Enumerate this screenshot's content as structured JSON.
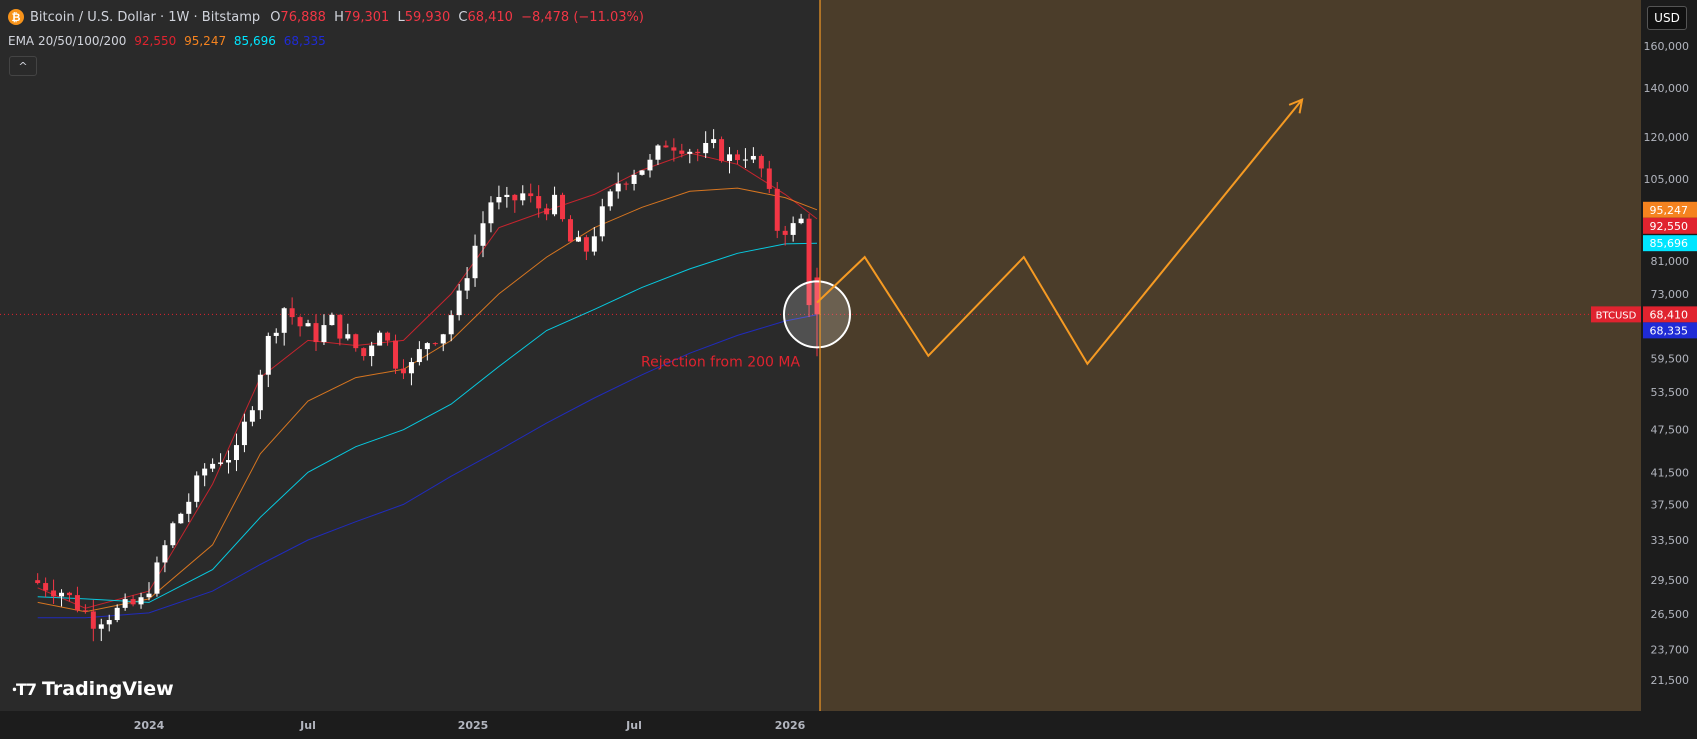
{
  "header": {
    "symbol_title": "Bitcoin / U.S. Dollar · 1W · Bitstamp",
    "icon": "bitcoin-icon",
    "ohlc": [
      {
        "key": "O",
        "value": "76,888"
      },
      {
        "key": "H",
        "value": "79,301"
      },
      {
        "key": "L",
        "value": "59,930"
      },
      {
        "key": "C",
        "value": "68,410"
      }
    ],
    "change": "−8,478 (−11.03%)"
  },
  "indicator": {
    "label": "EMA 20/50/100/200",
    "values": [
      {
        "value": "92,550",
        "color": "#e0232f"
      },
      {
        "value": "95,247",
        "color": "#f5831f"
      },
      {
        "value": "85,696",
        "color": "#00e5ff"
      },
      {
        "value": "68,335",
        "color": "#1f2bd6"
      }
    ]
  },
  "controls": {
    "collapse_icon": "chevron-up-icon",
    "currency": "USD"
  },
  "logo": {
    "text": "TradingView",
    "icon": "tradingview-logo-icon"
  },
  "chart_data": {
    "type": "candlestick",
    "symbol": "BTCUSD",
    "interval": "1W",
    "y_scale": "log",
    "ylim": [
      19500,
      185000
    ],
    "x_ticks": [
      "2024",
      "Jul",
      "2025",
      "Jul",
      "2026"
    ],
    "y_ticks": [
      "160,000",
      "140,000",
      "120,000",
      "105,000",
      "81,000",
      "73,000",
      "59,500",
      "53,500",
      "47,500",
      "41,500",
      "37,500",
      "33,500",
      "29,500",
      "26,500",
      "23,700",
      "21,500"
    ],
    "price_labels": [
      {
        "text": "95,247",
        "value": 95247,
        "color": "#f5831f"
      },
      {
        "text": "92,550",
        "value": 92550,
        "color": "#e0232f"
      },
      {
        "text": "85,696",
        "value": 85696,
        "color": "#00e5ff"
      },
      {
        "text": "68,410",
        "value": 68410,
        "color": "#e0232f",
        "tag": "BTCUSD"
      },
      {
        "text": "68,335",
        "value": 68335,
        "color": "#1f2bd6"
      }
    ],
    "anchors": [
      {
        "label": "2024",
        "value": 26500
      },
      {
        "label": "Jul",
        "value": 64000
      },
      {
        "label": "2025",
        "value": 97000
      },
      {
        "label": "Jul",
        "value": 118000
      },
      {
        "label": "2026",
        "value": 88000
      }
    ],
    "last_candle": {
      "open": 76888,
      "high": 79301,
      "low": 59930,
      "close": 68410
    },
    "emas": [
      {
        "name": "EMA 20",
        "color": "#e0232f",
        "points": [
          [
            -14,
            28800
          ],
          [
            -8,
            27000
          ],
          [
            0,
            28500
          ],
          [
            8,
            40000
          ],
          [
            14,
            56000
          ],
          [
            20,
            63000
          ],
          [
            26,
            62000
          ],
          [
            32,
            63000
          ],
          [
            38,
            73000
          ],
          [
            44,
            90000
          ],
          [
            50,
            95000
          ],
          [
            56,
            100000
          ],
          [
            62,
            108000
          ],
          [
            68,
            114000
          ],
          [
            74,
            110000
          ],
          [
            80,
            100000
          ],
          [
            84,
            92550
          ]
        ]
      },
      {
        "name": "EMA 50",
        "color": "#f5831f",
        "points": [
          [
            -14,
            27500
          ],
          [
            -8,
            26700
          ],
          [
            0,
            27800
          ],
          [
            8,
            33000
          ],
          [
            14,
            44000
          ],
          [
            20,
            52000
          ],
          [
            26,
            56000
          ],
          [
            32,
            57500
          ],
          [
            38,
            63000
          ],
          [
            44,
            73000
          ],
          [
            50,
            82000
          ],
          [
            56,
            90000
          ],
          [
            62,
            96000
          ],
          [
            68,
            101000
          ],
          [
            74,
            102000
          ],
          [
            80,
            99000
          ],
          [
            84,
            95247
          ]
        ]
      },
      {
        "name": "EMA 100",
        "color": "#00e5ff",
        "points": [
          [
            -14,
            28000
          ],
          [
            -8,
            27800
          ],
          [
            0,
            27500
          ],
          [
            8,
            30500
          ],
          [
            14,
            36000
          ],
          [
            20,
            41500
          ],
          [
            26,
            45000
          ],
          [
            32,
            47500
          ],
          [
            38,
            51500
          ],
          [
            44,
            58000
          ],
          [
            50,
            65000
          ],
          [
            56,
            69500
          ],
          [
            62,
            74500
          ],
          [
            68,
            79000
          ],
          [
            74,
            83000
          ],
          [
            80,
            85500
          ],
          [
            84,
            85696
          ]
        ]
      },
      {
        "name": "EMA 200",
        "color": "#1f2bd6",
        "points": [
          [
            -14,
            26200
          ],
          [
            -8,
            26200
          ],
          [
            0,
            26600
          ],
          [
            8,
            28500
          ],
          [
            14,
            31000
          ],
          [
            20,
            33500
          ],
          [
            26,
            35500
          ],
          [
            32,
            37500
          ],
          [
            38,
            41000
          ],
          [
            44,
            44500
          ],
          [
            50,
            48500
          ],
          [
            56,
            52500
          ],
          [
            62,
            56500
          ],
          [
            68,
            60500
          ],
          [
            74,
            64000
          ],
          [
            80,
            67000
          ],
          [
            84,
            68335
          ]
        ]
      }
    ],
    "annotation": {
      "text": "Rejection from 200 MA",
      "color": "#e0232f"
    },
    "projection": {
      "color": "#f59a23",
      "shade": "#4b3d2a",
      "points": [
        [
          84,
          71000
        ],
        [
          90,
          82000
        ],
        [
          98,
          60000
        ],
        [
          110,
          82000
        ],
        [
          118,
          58500
        ],
        [
          145,
          135000
        ]
      ]
    }
  }
}
